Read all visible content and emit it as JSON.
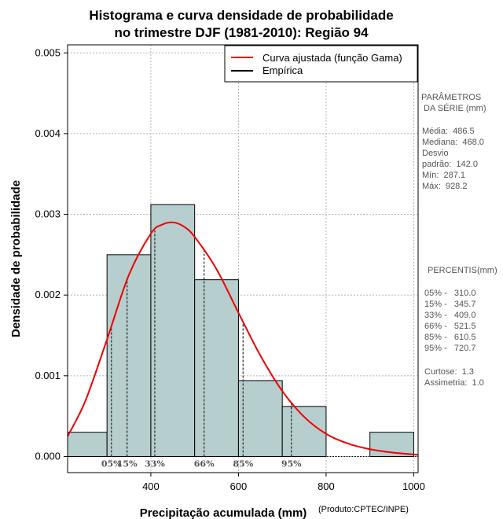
{
  "chart_data": {
    "type": "histogram",
    "title_line1": "Histograma e curva densidade de probabilidade",
    "title_line2": "no trimestre DJF (1981-2010): Região 94",
    "xlabel": "Precipitação acumulada (mm)",
    "ylabel": "Densidade de probabilidade",
    "credit": "(Produto:CPTEC/INPE)",
    "xlim": [
      210,
      1010
    ],
    "ylim": [
      -0.0002,
      0.0051
    ],
    "x_ticks": [
      400,
      600,
      800,
      1000
    ],
    "x_tick_labels": [
      "400",
      "600",
      "800",
      "1000"
    ],
    "y_ticks": [
      0.0,
      0.001,
      0.002,
      0.003,
      0.004,
      0.005
    ],
    "y_tick_labels": [
      "0.000",
      "0.001",
      "0.002",
      "0.003",
      "0.004",
      "0.005"
    ],
    "grid": true,
    "bars": [
      {
        "x0": 200,
        "x1": 300,
        "density": 0.0003
      },
      {
        "x0": 300,
        "x1": 400,
        "density": 0.0025
      },
      {
        "x0": 400,
        "x1": 500,
        "density": 0.00312
      },
      {
        "x0": 500,
        "x1": 600,
        "density": 0.00219
      },
      {
        "x0": 600,
        "x1": 700,
        "density": 0.00094
      },
      {
        "x0": 700,
        "x1": 800,
        "density": 0.00062
      },
      {
        "x0": 800,
        "x1": 900,
        "density": 0.0
      },
      {
        "x0": 900,
        "x1": 1000,
        "density": 0.0003
      }
    ],
    "bar_color": "#b6cecd",
    "fitted_curve": {
      "name": "Curva ajustada (função Gama)",
      "color": "#ee0000",
      "x": [
        210,
        250,
        300,
        350,
        400,
        425,
        450,
        475,
        500,
        550,
        600,
        650,
        700,
        750,
        800,
        850,
        900,
        950,
        1010
      ],
      "y": [
        0.00025,
        0.00068,
        0.00145,
        0.00225,
        0.00276,
        0.00287,
        0.0029,
        0.00285,
        0.00272,
        0.00232,
        0.00178,
        0.00125,
        0.00081,
        0.00049,
        0.00028,
        0.00016,
        9e-05,
        5e-05,
        2e-05
      ]
    },
    "empirical": {
      "name": "Empírica",
      "color": "#000000"
    },
    "percentile_markers": [
      {
        "label": "05%",
        "x": 310.0
      },
      {
        "label": "15%",
        "x": 345.7
      },
      {
        "label": "33%",
        "x": 409.0
      },
      {
        "label": "66%",
        "x": 521.5
      },
      {
        "label": "85%",
        "x": 610.5
      },
      {
        "label": "95%",
        "x": 720.7
      }
    ],
    "legend": {
      "placement": "top-right",
      "entries": [
        "Curva ajustada (função Gama)",
        "Empírica"
      ]
    }
  },
  "side_panel": {
    "params_title_1": "PARÂMETROS",
    "params_title_2": " DA SÉRIE (mm)",
    "media": "Média:  486.5",
    "mediana": "Mediana:  468.0",
    "desvio_1": "Desvio",
    "desvio_2": "padrão:  142.0",
    "min": "Mín:  287.1",
    "max": "Máx:  928.2",
    "percentis_title": "PERCENTIS(mm)",
    "percentis": [
      "05% -   310.0",
      "15% -   345.7",
      "33% -   409.0",
      "66% -   521.5",
      "85% -   610.5",
      "95% -   720.7"
    ],
    "curtose": "Curtose:  1.3",
    "assimetria": "Assimetria:  1.0"
  }
}
